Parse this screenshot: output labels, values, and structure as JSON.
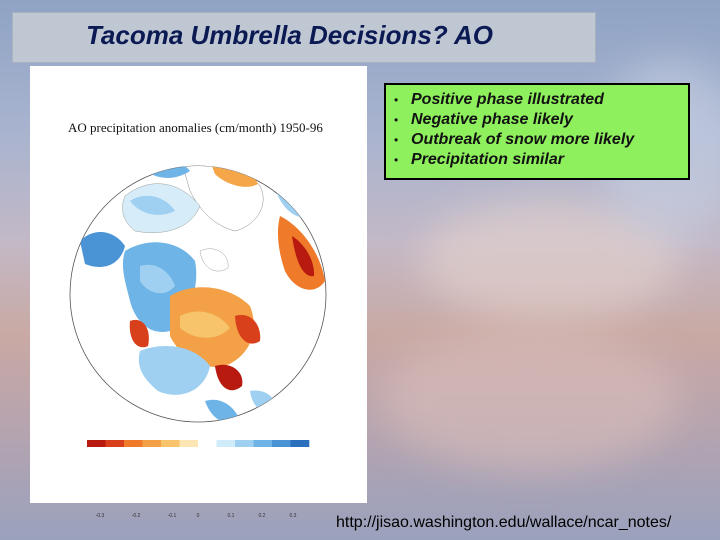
{
  "slide": {
    "title": "Tacoma Umbrella Decisions? AO",
    "map_title": "AO precipitation anomalies (cm/month) 1950-96",
    "bullets": [
      "Positive phase illustrated",
      "Negative phase likely",
      "Outbreak of snow more likely",
      "Precipitation similar"
    ],
    "bullet_symbol": "•",
    "source_url": "http://jisao.washington.edu/wallace/ncar_notes/",
    "colorbar_labels": [
      "-0.3",
      "-0.2",
      "-0.1",
      "0",
      "0.1",
      "0.2",
      "0.3"
    ],
    "colorbar_colors": [
      "#b81a10",
      "#d8401c",
      "#ee7a2a",
      "#f3a046",
      "#f7c46c",
      "#fde6b4",
      "#ffffff",
      "#d0ecfa",
      "#9fd0f2",
      "#6eb4e6",
      "#4a94d6",
      "#2a70bc"
    ],
    "accent_colors": {
      "title_text": "#0c1a54",
      "title_box": "#bfc7d3",
      "bullet_box": "#8ef05c"
    }
  }
}
